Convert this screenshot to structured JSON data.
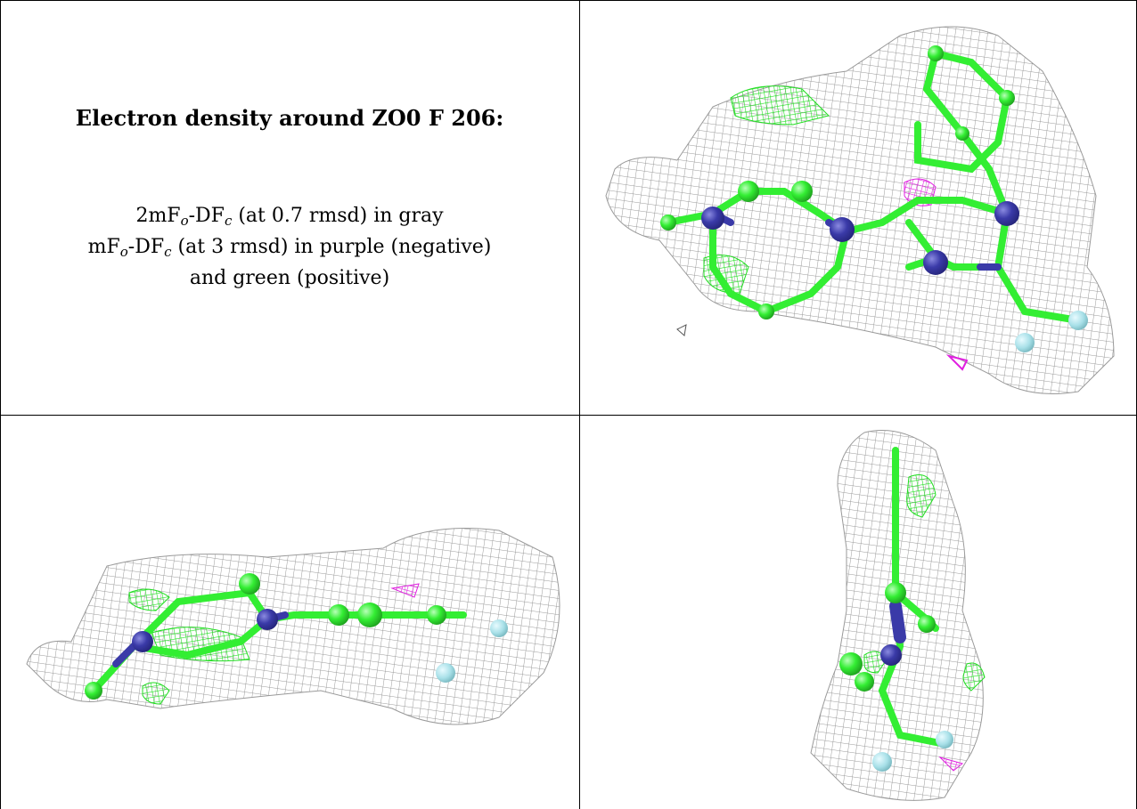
{
  "panel_text": {
    "title": "Electron density around ZO0 F 206:",
    "line1_a": "2mF",
    "line1_sub1": "o",
    "line1_b": "-DF",
    "line1_sub2": "c",
    "line1_c": " (at 0.7 rmsd) in gray",
    "line2_a": "mF",
    "line2_sub1": "o",
    "line2_b": "-DF",
    "line2_sub2": "c",
    "line2_c": " (at 3 rmsd) in purple (negative)",
    "line3": "and green (positive)"
  },
  "colors": {
    "mesh_gray": "#9a9a9a",
    "carbon_green": "#33ee33",
    "nitrogen_blue": "#3a3aa8",
    "fluorine_cyan": "#a8e0e8",
    "negative_purple": "#e020e0",
    "positive_green": "#22dd22"
  }
}
